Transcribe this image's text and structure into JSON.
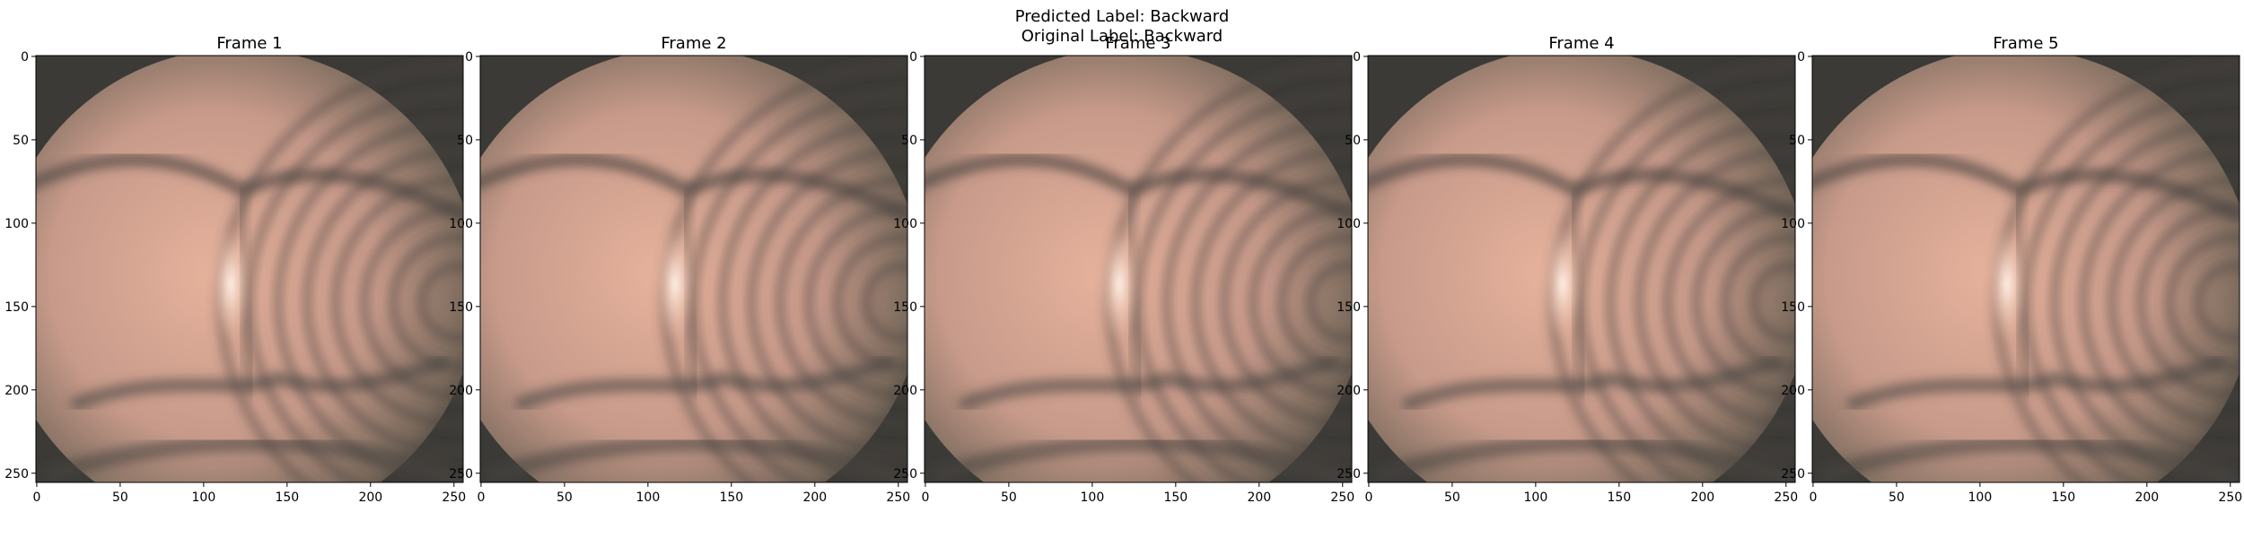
{
  "figure": {
    "suptitle_lines": [
      "Predicted Label: Backward",
      "Original Label: Backward"
    ]
  },
  "frames": [
    {
      "title": "Frame 1"
    },
    {
      "title": "Frame 2"
    },
    {
      "title": "Frame 3"
    },
    {
      "title": "Frame 4"
    },
    {
      "title": "Frame 5"
    }
  ],
  "axes": {
    "x_ticks": [
      "0",
      "50",
      "100",
      "150",
      "200",
      "250"
    ],
    "y_ticks": [
      "0",
      "50",
      "100",
      "150",
      "200",
      "250"
    ],
    "range": [
      0,
      255
    ]
  },
  "image_palette": {
    "dark": "#3b3a36",
    "ring_dark": "#4a4540",
    "skin_light": "#e8b49a",
    "skin_mid": "#c8988a",
    "highlight": "#fff2e6",
    "left_glow": "#f2c79a"
  }
}
